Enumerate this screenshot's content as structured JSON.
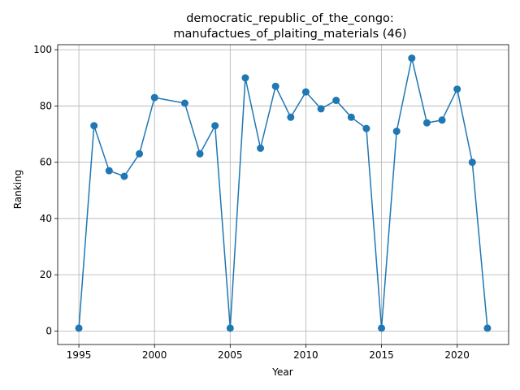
{
  "chart_data": {
    "type": "line",
    "title_line1": "democratic_republic_of_the_congo:",
    "title_line2": "manufactues_of_plaiting_materials (46)",
    "xlabel": "Year",
    "ylabel": "Ranking",
    "xlim": [
      1993.6,
      2023.4
    ],
    "ylim": [
      -4.8,
      101.8
    ],
    "xticks": [
      1995,
      2000,
      2005,
      2010,
      2015,
      2020
    ],
    "yticks": [
      0,
      20,
      40,
      60,
      80,
      100
    ],
    "grid": true,
    "line_color": "#1f77b4",
    "series": [
      {
        "x": [
          1995,
          1996,
          1997,
          1998,
          1999,
          2000,
          2002,
          2003,
          2004,
          2005,
          2006,
          2007,
          2008,
          2009,
          2010,
          2011,
          2012,
          2013,
          2014,
          2015,
          2016,
          2017,
          2018,
          2019,
          2020,
          2021,
          2022
        ],
        "y": [
          1,
          73,
          57,
          55,
          63,
          83,
          81,
          63,
          73,
          1,
          90,
          65,
          87,
          76,
          85,
          79,
          82,
          76,
          72,
          1,
          71,
          97,
          74,
          75,
          86,
          60,
          1
        ]
      }
    ]
  }
}
